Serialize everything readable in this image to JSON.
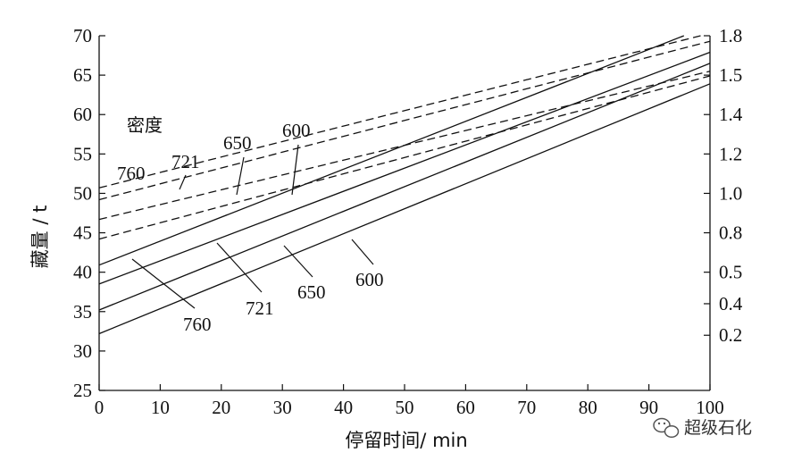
{
  "chart_data": {
    "type": "line",
    "xlabel": "停留时间/ min",
    "ylabel": "藏量 / t",
    "xlim": [
      0,
      100
    ],
    "ylim": [
      25,
      70
    ],
    "x_ticks": [
      0,
      10,
      20,
      30,
      40,
      50,
      60,
      70,
      80,
      90,
      100
    ],
    "y_ticks": [
      25,
      30,
      35,
      40,
      45,
      50,
      55,
      60,
      65,
      70
    ],
    "y2_ticks": [
      "0.2",
      "0.4",
      "0.5",
      "0.8",
      "1.0",
      "1.2",
      "1.4",
      "1.5",
      "1.8"
    ],
    "y2_tick_values": [
      32,
      36,
      40,
      45,
      50,
      55,
      60,
      65,
      70
    ],
    "grid": false,
    "series": [
      {
        "name": "760",
        "style": "solid",
        "x": [
          0,
          100
        ],
        "y": [
          40.9,
          71.3
        ]
      },
      {
        "name": "721",
        "style": "solid",
        "x": [
          0,
          100
        ],
        "y": [
          38.5,
          67.9
        ]
      },
      {
        "name": "650",
        "style": "solid",
        "x": [
          0,
          100
        ],
        "y": [
          35.2,
          66.5
        ]
      },
      {
        "name": "600",
        "style": "solid",
        "x": [
          0,
          100
        ],
        "y": [
          32.2,
          63.9
        ]
      },
      {
        "name": "760",
        "style": "dashed",
        "x": [
          0,
          100
        ],
        "y": [
          50.7,
          70.3
        ]
      },
      {
        "name": "721",
        "style": "dashed",
        "x": [
          0,
          100
        ],
        "y": [
          49.2,
          69.3
        ]
      },
      {
        "name": "650",
        "style": "dashed",
        "x": [
          0,
          100
        ],
        "y": [
          46.7,
          65.5
        ]
      },
      {
        "name": "600",
        "style": "dashed",
        "x": [
          0,
          100
        ],
        "y": [
          44.2,
          64.9
        ]
      }
    ],
    "annotations": {
      "density_label": "密度",
      "top_labels": [
        "760",
        "721",
        "650",
        "600"
      ],
      "bottom_labels": [
        "760",
        "721",
        "650",
        "600"
      ]
    }
  },
  "watermark": {
    "icon": "wechat-icon",
    "text": "超级石化"
  },
  "colors": {
    "line": "#111111",
    "background": "#ffffff"
  }
}
